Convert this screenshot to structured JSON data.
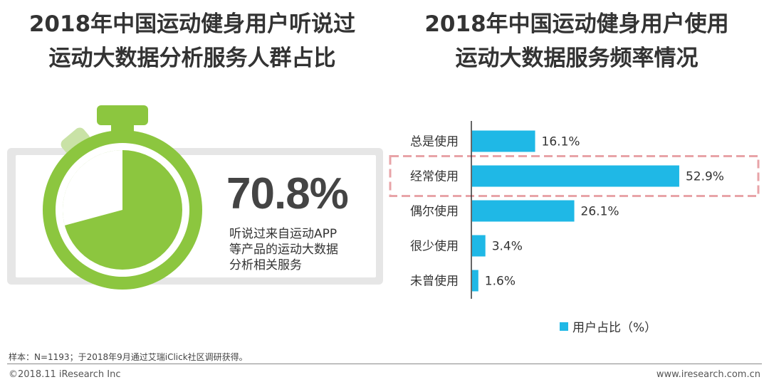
{
  "left_panel": {
    "title_lines": [
      "2018年中国运动健身用户听说过",
      "运动大数据分析服务人群占比"
    ],
    "percentage": "70.8%",
    "percentage_value": 70.8,
    "description_lines": [
      "听说过来自运动APP",
      "等产品的运动大数据",
      "分析相关服务"
    ]
  },
  "right_panel": {
    "title_lines": [
      "2018年中国运动健身用户使用",
      "运动大数据服务频率情况"
    ]
  },
  "chart_data": {
    "type": "bar",
    "orientation": "horizontal",
    "title": "2018年中国运动健身用户使用运动大数据服务频率情况",
    "categories": [
      "总是使用",
      "经常使用",
      "偶尔使用",
      "很少使用",
      "未曾使用"
    ],
    "values": [
      16.1,
      52.9,
      26.1,
      3.4,
      1.6
    ],
    "value_labels": [
      "16.1%",
      "52.9%",
      "26.1%",
      "3.4%",
      "1.6%"
    ],
    "series_name": "用户占比（%）",
    "highlighted_category": "经常使用",
    "xlim": [
      0,
      60
    ]
  },
  "legend": {
    "label": "用户占比（%）",
    "position": "bottom"
  },
  "colors": {
    "bar": "#1fb8e6",
    "accent_green": "#8cc63f",
    "light_green": "#c9e2a6",
    "highlight_dash": "#e8a4a8"
  },
  "footer": {
    "source": "样本：N=1193；于2018年9月通过艾瑞iClick社区调研获得。",
    "copyright": "©2018.11 iResearch Inc",
    "website": "www.iresearch.com.cn"
  }
}
